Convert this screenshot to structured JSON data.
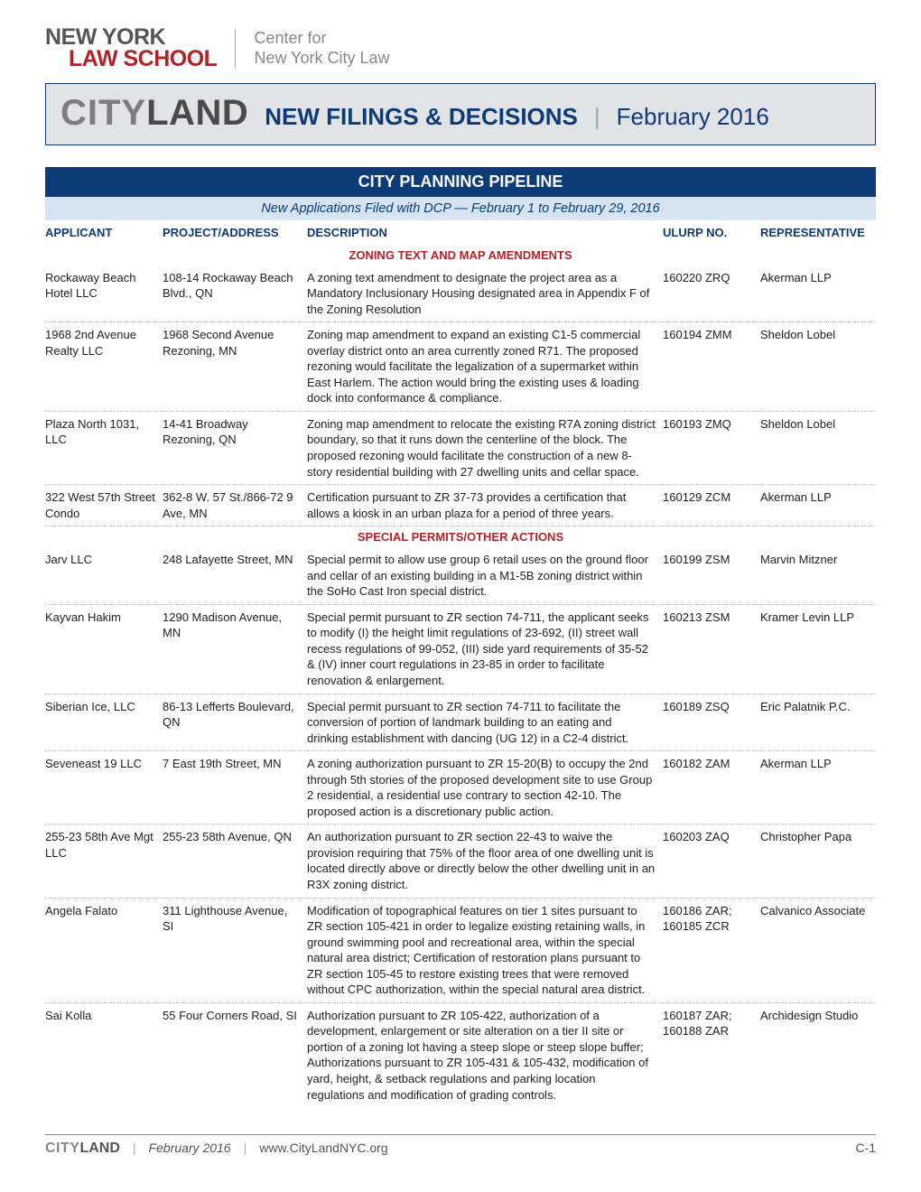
{
  "header": {
    "logo_line1": "NEW YORK",
    "logo_line2": "LAW SCHOOL",
    "center_line1": "Center for",
    "center_line2": "New York City Law"
  },
  "banner": {
    "brand_city": "CITY",
    "brand_land": "LAND",
    "title": "NEW FILINGS & DECISIONS",
    "date": "February 2016"
  },
  "section": {
    "title": "CITY PLANNING PIPELINE",
    "subtitle": "New Applications Filed with DCP — February 1 to February 29, 2016"
  },
  "columns": {
    "applicant": "APPLICANT",
    "project": "PROJECT/ADDRESS",
    "description": "DESCRIPTION",
    "ulurp": "ULURP NO.",
    "rep": "REPRESENTATIVE"
  },
  "groups": [
    {
      "label": "ZONING TEXT AND MAP AMENDMENTS",
      "rows": [
        {
          "applicant": "Rockaway Beach Hotel LLC",
          "project": "108-14 Rockaway Beach Blvd., QN",
          "description": "A zoning text amendment to designate the project area as a Mandatory Inclusionary Housing designated area in Appendix F of the Zoning Resolution",
          "ulurp": "160220 ZRQ",
          "rep": "Akerman LLP"
        },
        {
          "applicant": "1968 2nd Avenue Realty LLC",
          "project": "1968 Second Avenue Rezoning, MN",
          "description": "Zoning map amendment to expand an existing C1-5 commercial overlay district onto an area currently zoned R71. The proposed rezoning would facilitate the legalization of a supermarket within East Harlem. The action would bring the existing uses & loading dock into conformance & compliance.",
          "ulurp": "160194 ZMM",
          "rep": "Sheldon Lobel"
        },
        {
          "applicant": "Plaza North 1031, LLC",
          "project": "14-41 Broadway Rezoning, QN",
          "description": "Zoning map amendment to relocate the existing R7A zoning district boundary, so that it runs down the centerline of the block. The proposed rezoning would facilitate the construction of a new 8-story residential building with 27 dwelling units and cellar space.",
          "ulurp": "160193 ZMQ",
          "rep": "Sheldon Lobel"
        },
        {
          "applicant": "322 West 57th Street Condo",
          "project": "362-8 W. 57 St./866-72 9 Ave, MN",
          "description": "Certification pursuant to ZR 37-73 provides a certification that allows a kiosk in an urban plaza for a period of three years.",
          "ulurp": "160129 ZCM",
          "rep": "Akerman LLP"
        }
      ]
    },
    {
      "label": "SPECIAL PERMITS/OTHER ACTIONS",
      "rows": [
        {
          "applicant": "Jarv LLC",
          "project": "248 Lafayette Street, MN",
          "description": "Special permit to allow use group 6 retail uses on the ground floor and cellar of an existing building in a M1-5B zoning district within the SoHo Cast Iron special district.",
          "ulurp": "160199 ZSM",
          "rep": "Marvin Mitzner"
        },
        {
          "applicant": "Kayvan Hakim",
          "project": "1290 Madison Avenue, MN",
          "description": "Special permit pursuant to ZR section 74-711, the applicant seeks to modify (I) the height limit regulations of 23-692, (II) street wall recess regulations of 99-052, (III) side yard requirements of 35-52 & (IV) inner court regulations in 23-85 in order to facilitate renovation & enlargement.",
          "ulurp": "160213 ZSM",
          "rep": "Kramer Levin LLP"
        },
        {
          "applicant": "Siberian Ice, LLC",
          "project": "86-13 Lefferts Boulevard, QN",
          "description": "Special permit pursuant to ZR section 74-711 to facilitate the conversion of portion of landmark building to an eating and drinking establishment with dancing (UG 12) in a C2-4 district.",
          "ulurp": "160189 ZSQ",
          "rep": "Eric Palatnik P.C."
        },
        {
          "applicant": "Seveneast 19 LLC",
          "project": "7 East 19th Street, MN",
          "description": "A zoning authorization pursuant to ZR 15-20(B) to occupy the 2nd through 5th stories of the proposed development site to use Group 2 residential, a residential use contrary to section 42-10. The proposed action is a discretionary public action.",
          "ulurp": "160182 ZAM",
          "rep": "Akerman LLP"
        },
        {
          "applicant": "255-23 58th Ave Mgt LLC",
          "project": "255-23 58th Avenue, QN",
          "description": "An authorization pursuant to ZR section 22-43 to waive the provision requiring that 75% of the floor area of one dwelling unit is located directly above or directly below the other dwelling unit in an R3X zoning district.",
          "ulurp": "160203 ZAQ",
          "rep": "Christopher Papa"
        },
        {
          "applicant": "Angela Falato",
          "project": "311 Lighthouse Avenue, SI",
          "description": "Modification of topographical features on tier 1 sites pursuant to ZR section 105-421 in order to legalize existing retaining walls, in ground swimming pool and recreational area, within the special natural area district; Certification of restoration plans pursuant to ZR section 105-45 to restore existing trees that were removed without CPC authorization, within the special natural area district.",
          "ulurp": "160186 ZAR; 160185 ZCR",
          "rep": "Calvanico Associate"
        },
        {
          "applicant": "Sai Kolla",
          "project": "55 Four Corners Road, SI",
          "description": "Authorization pursuant to ZR 105-422, authorization of a development, enlargement or site alteration on a tier II site or portion of a zoning lot having a steep slope or steep slope buffer; Authorizations pursuant to ZR 105-431 & 105-432, modification of yard, height, & setback regulations and parking location regulations and modification of grading controls.",
          "ulurp": "160187 ZAR; 160188 ZAR",
          "rep": "Archidesign Studio"
        }
      ]
    }
  ],
  "footer": {
    "brand_city": "CITY",
    "brand_land": "LAND",
    "date": "February 2016",
    "url": "www.CityLandNYC.org",
    "page": "C-1"
  },
  "colors": {
    "navy": "#0c3b78",
    "red": "#b02329",
    "banner_bg": "#e1e3e6",
    "subbar_bg": "#d6e4f2"
  }
}
